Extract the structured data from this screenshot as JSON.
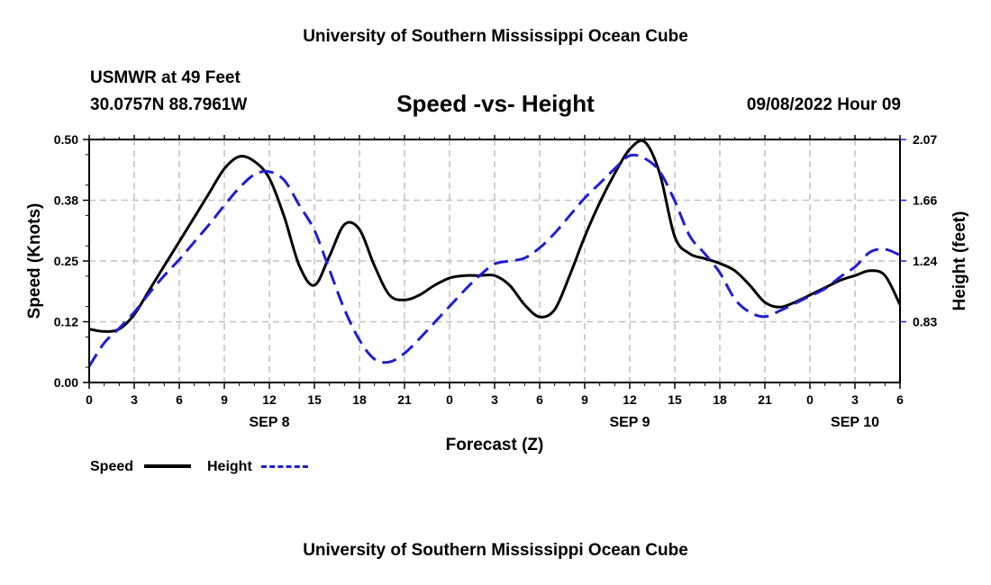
{
  "header": {
    "title_top": "University of Southern Mississippi Ocean Cube",
    "title_bottom": "University of Southern Mississippi Ocean Cube",
    "station": "USMWR at 49 Feet",
    "coords": "30.0757N  88.7961W",
    "date_hour": "09/08/2022 Hour 09"
  },
  "chart_data": {
    "type": "line",
    "title": "Speed -vs- Height",
    "xlabel": "Forecast (Z)",
    "ylabel_left": "Speed (Knots)",
    "ylabel_right": "Height (feet)",
    "grid": true,
    "legend_position": "bottom-left",
    "x_range": [
      0,
      54
    ],
    "x_tick_labels": [
      "0",
      "3",
      "6",
      "9",
      "12",
      "15",
      "18",
      "21",
      "0",
      "3",
      "6",
      "9",
      "12",
      "15",
      "18",
      "21",
      "0",
      "3",
      "6"
    ],
    "date_labels": [
      {
        "label": "SEP 8",
        "hour": 12
      },
      {
        "label": "SEP 9",
        "hour": 36
      },
      {
        "label": "SEP 10",
        "hour": 51
      }
    ],
    "y_left": {
      "range": [
        0,
        0.5
      ],
      "tick_labels": [
        "0.00",
        "0.12",
        "0.25",
        "0.38",
        "0.50"
      ]
    },
    "y_right": {
      "range": [
        0.41,
        2.07
      ],
      "tick_labels": [
        "0.83",
        "1.24",
        "1.66",
        "2.07"
      ]
    },
    "series": [
      {
        "name": "Speed",
        "axis": "left",
        "color": "#000000",
        "dash": "solid",
        "x": [
          0,
          1,
          2,
          3,
          4,
          5,
          6,
          7,
          8,
          9,
          10,
          11,
          12,
          13,
          14,
          15,
          16,
          17,
          18,
          19,
          20,
          21,
          22,
          23,
          24,
          25,
          26,
          27,
          28,
          29,
          30,
          31,
          32,
          33,
          34,
          35,
          36,
          37,
          38,
          39,
          40,
          41,
          42,
          43,
          44,
          45,
          46,
          47,
          48,
          49,
          50,
          51,
          52,
          53,
          54
        ],
        "values": [
          0.11,
          0.105,
          0.11,
          0.14,
          0.19,
          0.24,
          0.29,
          0.34,
          0.39,
          0.44,
          0.465,
          0.455,
          0.42,
          0.34,
          0.24,
          0.2,
          0.26,
          0.325,
          0.315,
          0.24,
          0.18,
          0.17,
          0.18,
          0.2,
          0.215,
          0.22,
          0.22,
          0.22,
          0.2,
          0.16,
          0.135,
          0.15,
          0.22,
          0.3,
          0.37,
          0.43,
          0.48,
          0.495,
          0.43,
          0.3,
          0.265,
          0.255,
          0.245,
          0.23,
          0.2,
          0.165,
          0.155,
          0.165,
          0.18,
          0.195,
          0.21,
          0.22,
          0.23,
          0.22,
          0.16
        ]
      },
      {
        "name": "Height",
        "axis": "right",
        "color": "#1f1fcf",
        "dash": "dashed",
        "x": [
          0,
          1,
          2,
          3,
          4,
          5,
          6,
          7,
          8,
          9,
          10,
          11,
          12,
          13,
          14,
          15,
          16,
          17,
          18,
          19,
          20,
          21,
          22,
          23,
          24,
          25,
          26,
          27,
          28,
          29,
          30,
          31,
          32,
          33,
          34,
          35,
          36,
          37,
          38,
          39,
          40,
          41,
          42,
          43,
          44,
          45,
          46,
          47,
          48,
          49,
          50,
          51,
          52,
          53,
          54
        ],
        "values": [
          0.52,
          0.68,
          0.78,
          0.89,
          1.02,
          1.14,
          1.25,
          1.37,
          1.49,
          1.62,
          1.74,
          1.83,
          1.85,
          1.79,
          1.62,
          1.45,
          1.18,
          0.91,
          0.7,
          0.57,
          0.55,
          0.61,
          0.71,
          0.82,
          0.93,
          1.04,
          1.14,
          1.22,
          1.24,
          1.26,
          1.33,
          1.43,
          1.55,
          1.67,
          1.77,
          1.87,
          1.96,
          1.94,
          1.85,
          1.65,
          1.41,
          1.29,
          1.16,
          0.98,
          0.89,
          0.86,
          0.9,
          0.95,
          1.0,
          1.05,
          1.13,
          1.2,
          1.3,
          1.32,
          1.28
        ]
      }
    ]
  }
}
